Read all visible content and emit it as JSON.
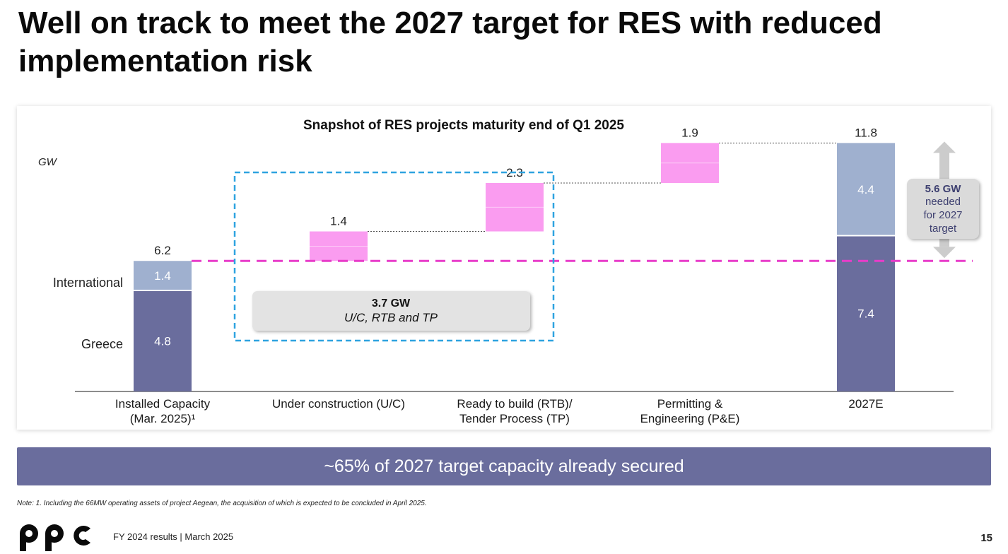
{
  "page": {
    "title": "Well on track to meet the 2027 target for RES with reduced implementation risk",
    "banner": "~65% of 2027 target capacity already secured",
    "note": "Note: 1. Including the 66MW  operating assets of  project Aegean, the acquisition of which is expected to be concluded  in April 2025.",
    "footer": "FY 2024 results | March 2025",
    "page_number": "15",
    "logo": "ppc"
  },
  "chart_data": {
    "type": "bar",
    "subtype": "waterfall",
    "title": "Snapshot of RES projects maturity end of Q1 2025",
    "ylabel": "GW",
    "ylim": [
      0,
      12.5
    ],
    "categories": [
      [
        "Installed Capacity",
        "(Mar. 2025)¹"
      ],
      [
        "Under construction (U/C)"
      ],
      [
        "Ready to build (RTB)/",
        "Tender Process (TP)"
      ],
      [
        "Permitting &",
        "Engineering (P&E)"
      ],
      [
        "2027E"
      ]
    ],
    "segment_labels": [
      "Greece",
      "International"
    ],
    "stacked_bars": [
      {
        "category_index": 0,
        "segments": [
          4.8,
          1.4
        ],
        "total": "6.2"
      },
      {
        "category_index": 4,
        "segments": [
          7.4,
          4.4
        ],
        "total": "11.8"
      }
    ],
    "increments": [
      {
        "category_index": 1,
        "start": 6.2,
        "value": 1.4,
        "label": "1.4"
      },
      {
        "category_index": 2,
        "start": 7.6,
        "value": 2.3,
        "label": "2.3"
      },
      {
        "category_index": 3,
        "start": 9.9,
        "value": 1.9,
        "label": "1.9"
      }
    ],
    "segment_value_labels": [
      [
        "4.8",
        "1.4"
      ],
      [
        "7.4",
        "4.4"
      ]
    ],
    "reference_line": {
      "value": 6.2,
      "style": "dashed",
      "color": "#e83cc9"
    },
    "box_annotation": {
      "line1": "3.7 GW",
      "line2": "U/C, RTB and TP"
    },
    "side_annotation": {
      "line1": "5.6 GW",
      "line2": "needed",
      "line3": "for 2027",
      "line4": "target",
      "from": 6.2,
      "to": 11.8
    },
    "colors": {
      "greece": "#6a6d9d",
      "international": "#9fb0cf",
      "increment": "#fa9cf0",
      "reference": "#e83cc9",
      "box": "#2ea3e0",
      "annotation_fill": "#e3e3e3",
      "arrow": "#cccccc"
    }
  }
}
